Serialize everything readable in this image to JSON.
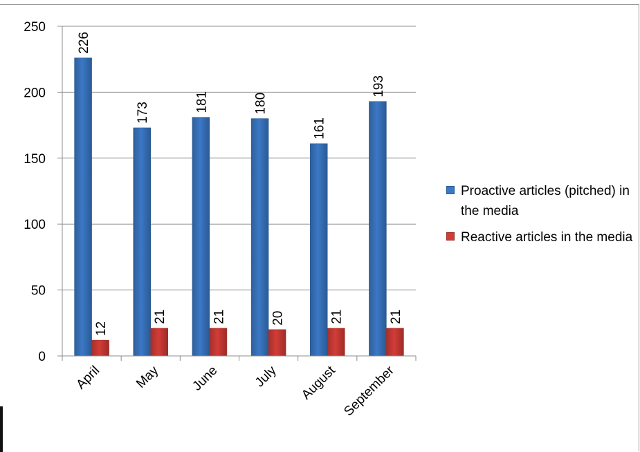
{
  "chart_data": {
    "type": "bar",
    "categories": [
      "April",
      "May",
      "June",
      "July",
      "August",
      "September"
    ],
    "series": [
      {
        "name": "Proactive articles (pitched) in the media",
        "values": [
          226,
          173,
          181,
          180,
          161,
          193
        ],
        "color": "#4f81bd"
      },
      {
        "name": "Reactive articles in the media",
        "values": [
          12,
          21,
          21,
          20,
          21,
          21
        ],
        "color": "#c0504d"
      }
    ],
    "ylim": [
      0,
      250
    ],
    "yticks": [
      0,
      50,
      100,
      150,
      200,
      250
    ],
    "grid": true,
    "legend_position": "right",
    "data_labels": true
  }
}
